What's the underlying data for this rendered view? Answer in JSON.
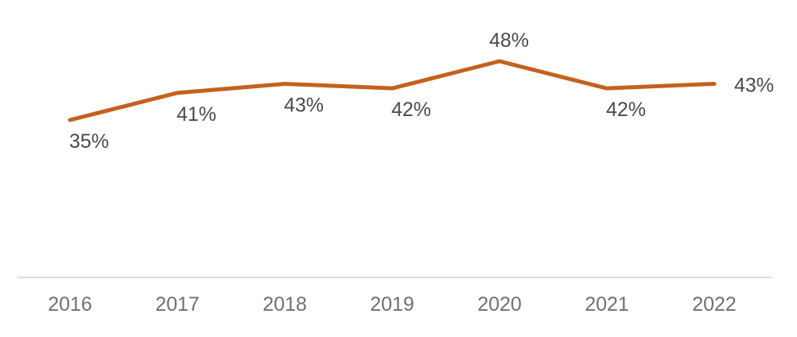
{
  "page": {
    "background_color": "#ffffff"
  },
  "chart_data": {
    "type": "line",
    "title": "",
    "xlabel": "",
    "ylabel": "",
    "categories": [
      "2016",
      "2017",
      "2018",
      "2019",
      "2020",
      "2021",
      "2022"
    ],
    "series": [
      {
        "name": "share-percent",
        "values": [
          35,
          41,
          43,
          42,
          48,
          42,
          43
        ],
        "labels": [
          "35%",
          "41%",
          "43%",
          "42%",
          "48%",
          "42%",
          "43%"
        ],
        "color": "#C4611C"
      }
    ],
    "data_label_positions": [
      "below",
      "below",
      "below",
      "below",
      "above",
      "below",
      "right"
    ],
    "ylim": [
      30,
      52
    ],
    "grid": false,
    "legend": "none",
    "axis_line_color": "#DBDBDB",
    "data_label_color": "#4A4A4A",
    "tick_label_color": "#707070"
  }
}
